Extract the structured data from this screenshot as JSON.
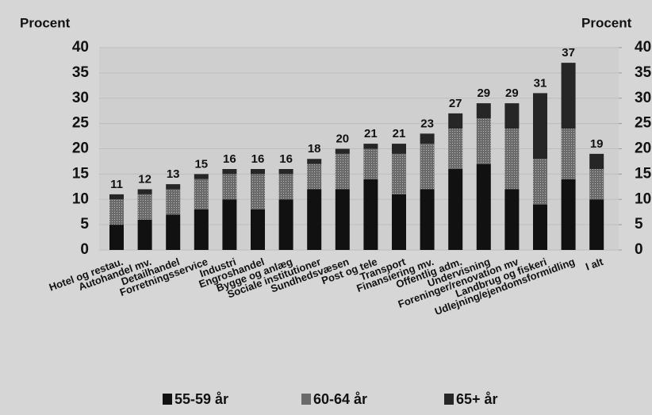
{
  "chart_data": {
    "type": "stacked_bar",
    "y_label": "Procent",
    "y2_label": "Procent",
    "categories": [
      "Hotel og restau.",
      "Autohandel mv.",
      "Detailhandel",
      "Forretningsservice",
      "Industri",
      "Engroshandel",
      "Bygge og anlæg",
      "Sociale institutioner",
      "Sundhedsvæsen",
      "Post og tele",
      "Transport",
      "Finansiering mv.",
      "Offentlig adm.",
      "Undervisning",
      "Foreninger/renovation mv",
      "Landbrug og fiskeri",
      "Udlejning/ejendomsformidling",
      "I alt"
    ],
    "series": [
      {
        "name": "55-59 år",
        "color": "#111111",
        "values": [
          5,
          6,
          7,
          8,
          10,
          8,
          10,
          12,
          12,
          14,
          11,
          12,
          16,
          17,
          12,
          9,
          14,
          10
        ]
      },
      {
        "name": "60-64 år",
        "color": "#5a5a5a",
        "values": [
          5,
          5,
          5,
          6,
          5,
          7,
          5,
          5,
          7,
          6,
          8,
          9,
          8,
          9,
          12,
          9,
          10,
          6
        ]
      },
      {
        "name": "65+ år",
        "color": "#262626",
        "values": [
          1,
          1,
          1,
          1,
          1,
          1,
          1,
          1,
          1,
          1,
          2,
          2,
          3,
          3,
          5,
          13,
          13,
          3
        ]
      }
    ],
    "totals": [
      11,
      12,
      13,
      15,
      16,
      16,
      16,
      18,
      20,
      21,
      21,
      23,
      27,
      29,
      29,
      31,
      37,
      19
    ],
    "ylim": [
      0,
      40
    ],
    "yticks": [
      0,
      5,
      10,
      15,
      20,
      25,
      30,
      35,
      40
    ],
    "y2lim": [
      0,
      40
    ],
    "y2ticks": [
      0,
      5,
      10,
      15,
      20,
      25,
      30,
      35,
      40
    ],
    "grid": true
  }
}
